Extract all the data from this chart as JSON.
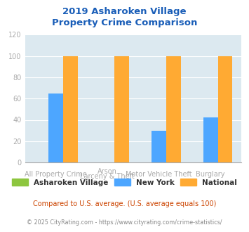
{
  "title": "2019 Asharoken Village\nProperty Crime Comparison",
  "categories": [
    "All Property Crime",
    "Arson\nLarceny & Theft",
    "Motor Vehicle Theft",
    "Burglary"
  ],
  "cat_line1": [
    "All Property Crime",
    "Arson",
    "Motor Vehicle Theft",
    "Burglary"
  ],
  "cat_line2": [
    "",
    "Larceny & Theft",
    "",
    ""
  ],
  "series": {
    "Asharoken Village": [
      0,
      0,
      0,
      0
    ],
    "New York": [
      65,
      0,
      30,
      42
    ],
    "National": [
      100,
      100,
      100,
      100
    ]
  },
  "colors": {
    "Asharoken Village": "#8dc63f",
    "New York": "#4da6ff",
    "National": "#ffaa33"
  },
  "ylim": [
    0,
    120
  ],
  "yticks": [
    0,
    20,
    40,
    60,
    80,
    100,
    120
  ],
  "bar_width": 0.28,
  "title_color": "#1a5eb8",
  "title_fontsize": 9.5,
  "bg_color": "#dce9f0",
  "tick_color": "#aaaaaa",
  "tick_fontsize": 7,
  "footnote1": "Compared to U.S. average. (U.S. average equals 100)",
  "footnote2": "© 2025 CityRating.com - https://www.cityrating.com/crime-statistics/",
  "footnote1_color": "#cc4400",
  "footnote2_color": "#888888",
  "legend_fontsize": 7.5,
  "grid_color": "#ffffff"
}
